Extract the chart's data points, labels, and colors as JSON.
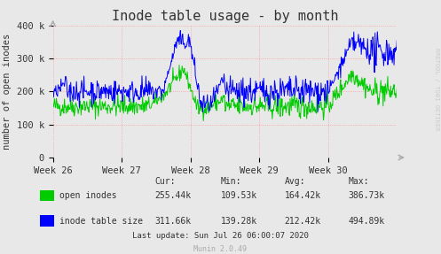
{
  "title": "Inode table usage - by month",
  "ylabel": "number of open inodes",
  "background_color": "#e8e8e8",
  "plot_bg_color": "#e8e8e8",
  "grid_color": "#ff9999",
  "grid_linestyle": ":",
  "ylim": [
    0,
    400000
  ],
  "yticks": [
    0,
    100000,
    200000,
    300000,
    400000
  ],
  "ytick_labels": [
    "0",
    "100 k",
    "200 k",
    "300 k",
    "400 k"
  ],
  "xtick_labels": [
    "Week 26",
    "Week 27",
    "Week 28",
    "Week 29",
    "Week 30"
  ],
  "legend_data": [
    {
      "label": "open inodes",
      "color": "#00cc00"
    },
    {
      "label": "inode table size",
      "color": "#0000ff"
    }
  ],
  "stats": {
    "headers": [
      "Cur:",
      "Min:",
      "Avg:",
      "Max:"
    ],
    "open_inodes": [
      "255.44k",
      "109.53k",
      "164.42k",
      "386.73k"
    ],
    "inode_table_size": [
      "311.66k",
      "139.28k",
      "212.42k",
      "494.89k"
    ]
  },
  "last_update": "Last update: Sun Jul 26 06:00:07 2020",
  "munin_version": "Munin 2.0.49",
  "right_label": "RRDTOOL / TOBI OETIKER",
  "title_fontsize": 11,
  "label_fontsize": 7.5,
  "tick_fontsize": 7.5,
  "num_points": 600
}
